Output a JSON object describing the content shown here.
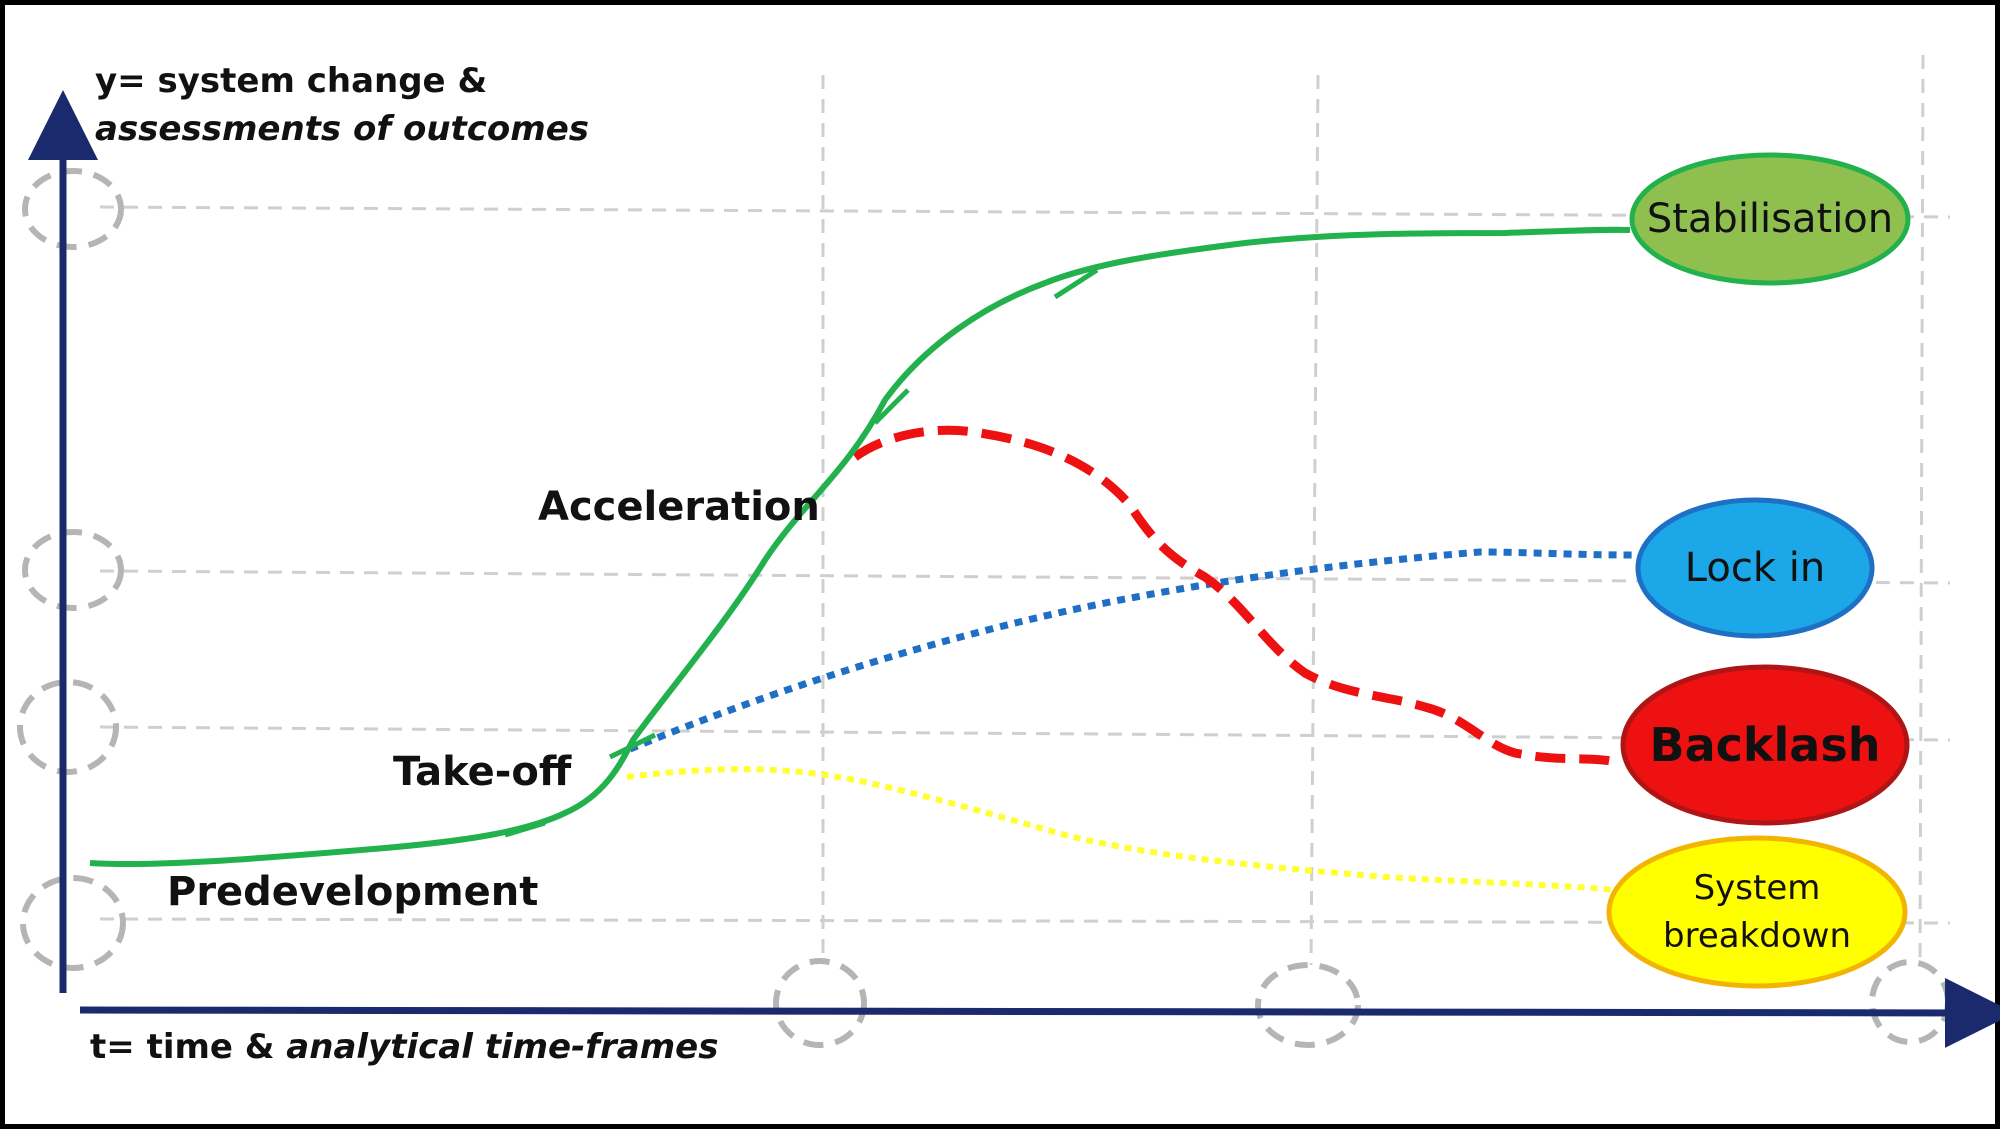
{
  "axes": {
    "y_title_line1": "y= system change &",
    "y_title_line2": "assessments of outcomes",
    "x_title_plain": "t= time & ",
    "x_title_italic": "analytical time-frames",
    "color": "#1a2a6c"
  },
  "phases": {
    "predevelopment": "Predevelopment",
    "takeoff": "Take-off",
    "acceleration": "Acceleration"
  },
  "outcomes": {
    "stabilisation": {
      "label": "Stabilisation",
      "fill": "#8fc04f",
      "stroke": "#22b14c"
    },
    "lockin": {
      "label": "Lock in",
      "fill": "#1ba7e8",
      "stroke": "#1f6fc4"
    },
    "backlash": {
      "label": "Backlash",
      "fill": "#ee1111",
      "stroke": "#b01515"
    },
    "breakdown_line1": "System",
    "breakdown_line2": "breakdown",
    "breakdown_fill": "#ffff00",
    "breakdown_stroke": "#f2b400"
  },
  "curve_colors": {
    "main": "#22b14c",
    "backlash": "#ee1111",
    "lockin": "#1f6fc4",
    "breakdown": "#ffff33",
    "grid": "#cfcfcf",
    "marker": "#b5b5b5"
  }
}
